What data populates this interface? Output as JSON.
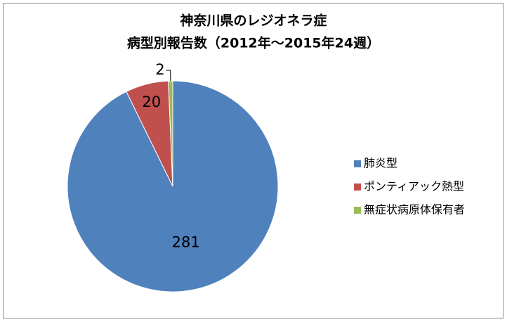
{
  "chart_data": {
    "type": "pie",
    "title": [
      "神奈川県のレジオネラ症",
      "病型別報告数（2012年～2015年24週）"
    ],
    "categories": [
      "肺炎型",
      "ポンティアック熱型",
      "無症状病原体保有者"
    ],
    "values": [
      281,
      20,
      2
    ],
    "colors": [
      "#4f81bd",
      "#c0504d",
      "#9bbb59"
    ],
    "legend": "right"
  }
}
